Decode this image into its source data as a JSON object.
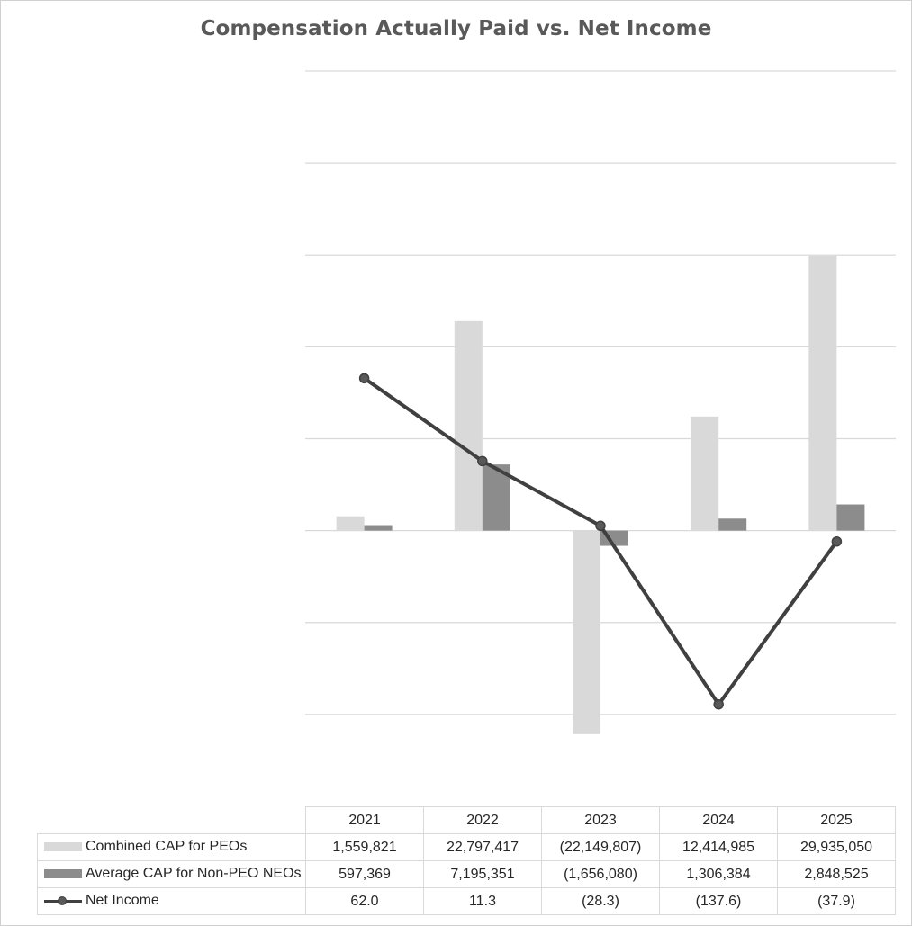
{
  "chart_data": {
    "type": "bar+line",
    "title": "Compensation Actually Paid vs. Net Income",
    "categories": [
      "2021",
      "2022",
      "2023",
      "2024",
      "2025"
    ],
    "series": [
      {
        "name": "Combined CAP for PEOs",
        "kind": "bar",
        "axis": "primary",
        "color": "#d9d9d9",
        "values": [
          1559821,
          22797417,
          -22149807,
          12414985,
          29935050
        ],
        "labels": [
          "1,559,821",
          "22,797,417",
          "(22,149,807)",
          "12,414,985",
          "29,935,050"
        ]
      },
      {
        "name": "Average CAP for Non-PEO NEOs",
        "kind": "bar",
        "axis": "primary",
        "color": "#8c8c8c",
        "values": [
          597369,
          7195351,
          -1656080,
          1306384,
          2848525
        ],
        "labels": [
          "597,369",
          "7,195,351",
          "(1,656,080)",
          "1,306,384",
          "2,848,525"
        ]
      },
      {
        "name": "Net Income",
        "kind": "line",
        "axis": "secondary",
        "color": "#404040",
        "values": [
          62.0,
          11.3,
          -28.3,
          -137.6,
          -37.9
        ],
        "labels": [
          "62.0",
          "11.3",
          "(28.3)",
          "(137.6)",
          "(37.9)"
        ]
      }
    ],
    "primary_ylim": [
      -30000000,
      50000000
    ],
    "primary_gridline_step": 10000000,
    "secondary_ylim": [
      -200,
      250
    ],
    "axis_tick_labels_shown": false,
    "grid": true,
    "legend": "data-table-below"
  }
}
